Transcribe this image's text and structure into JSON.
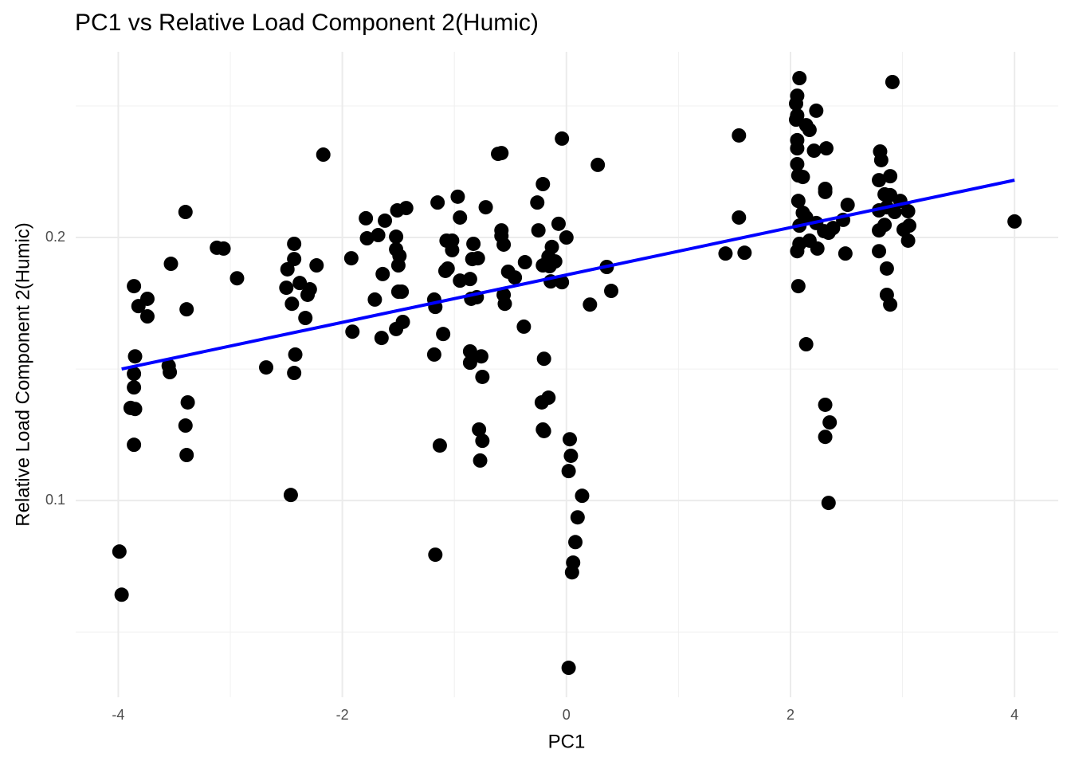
{
  "chart_data": {
    "type": "scatter",
    "title": "PC1 vs Relative Load Component 2(Humic)",
    "xlabel": "PC1",
    "ylabel": "Relative Load Component 2(Humic)",
    "xlim": [
      -4.38,
      4.39
    ],
    "ylim": [
      0.0252,
      0.2706
    ],
    "xticks": [
      -4,
      -2,
      0,
      2,
      4
    ],
    "yticks": [
      0.1,
      0.2
    ],
    "xminor": [
      -3,
      -1,
      1,
      3
    ],
    "yminor": [
      0.05,
      0.15,
      0.25
    ],
    "grid": true,
    "color": "#000000",
    "x": [
      -3.99,
      -3.97,
      -3.86,
      -3.82,
      -3.74,
      -3.74,
      -3.85,
      -3.86,
      -3.86,
      -3.89,
      -3.85,
      -3.86,
      -3.55,
      -3.54,
      -3.53,
      -3.4,
      -3.39,
      -3.38,
      -3.4,
      -3.39,
      -3.12,
      -3.06,
      -2.94,
      -2.68,
      -2.46,
      -2.43,
      -2.43,
      -2.49,
      -2.5,
      -2.45,
      -2.38,
      -2.29,
      -2.31,
      -2.33,
      -2.42,
      -2.43,
      -2.23,
      -2.17,
      -1.92,
      -1.91,
      -1.79,
      -1.78,
      -1.68,
      -1.71,
      -1.65,
      -1.64,
      -1.62,
      -1.52,
      -1.51,
      -1.43,
      -1.52,
      -1.49,
      -1.5,
      -1.5,
      -1.47,
      -1.46,
      -1.52,
      -1.15,
      -1.18,
      -1.17,
      -1.1,
      -1.18,
      -1.13,
      -1.17,
      -0.97,
      -0.95,
      -1.07,
      -1.02,
      -1.02,
      -1.08,
      -1.06,
      -0.95,
      -0.86,
      -0.83,
      -0.79,
      -0.84,
      -0.85,
      -0.8,
      -0.86,
      -0.86,
      -0.76,
      -0.75,
      -0.78,
      -0.75,
      -0.77,
      -0.72,
      -0.61,
      -0.58,
      -0.58,
      -0.58,
      -0.56,
      -0.56,
      -0.55,
      -0.52,
      -0.46,
      -0.37,
      -0.38,
      -0.26,
      -0.21,
      -0.25,
      -0.21,
      -0.16,
      -0.15,
      -0.13,
      -0.1,
      -0.14,
      -0.07,
      -0.04,
      0.0,
      -0.04,
      -0.2,
      -0.22,
      -0.16,
      -0.21,
      -0.2,
      0.03,
      0.04,
      0.02,
      0.14,
      0.1,
      0.08,
      0.06,
      0.05,
      0.02,
      0.21,
      0.28,
      0.36,
      0.4,
      1.42,
      1.54,
      1.54,
      1.59,
      2.08,
      2.06,
      2.05,
      2.06,
      2.05,
      2.14,
      2.17,
      2.06,
      2.06,
      2.06,
      2.07,
      2.11,
      2.23,
      2.21,
      2.32,
      2.31,
      2.31,
      2.07,
      2.11,
      2.08,
      2.14,
      2.23,
      2.3,
      2.34,
      2.38,
      2.06,
      2.08,
      2.17,
      2.24,
      2.47,
      2.51,
      2.49,
      2.07,
      2.14,
      2.31,
      2.35,
      2.31,
      2.34,
      2.8,
      2.81,
      2.79,
      2.89,
      2.84,
      2.89,
      2.98,
      2.79,
      2.86,
      2.93,
      3.05,
      2.84,
      2.79,
      3.01,
      3.06,
      3.05,
      2.79,
      2.86,
      2.86,
      2.89,
      2.91,
      4.0
    ],
    "values": [
      0.0806,
      0.0642,
      0.1815,
      0.1739,
      0.1767,
      0.17,
      0.1548,
      0.1482,
      0.143,
      0.1352,
      0.1348,
      0.1212,
      0.1512,
      0.1488,
      0.19,
      0.2097,
      0.1727,
      0.1373,
      0.1285,
      0.1173,
      0.1961,
      0.1958,
      0.1845,
      0.1506,
      0.1021,
      0.1976,
      0.1918,
      0.1879,
      0.1809,
      0.1748,
      0.1827,
      0.1803,
      0.1782,
      0.1694,
      0.1555,
      0.1485,
      0.1894,
      0.2315,
      0.1921,
      0.1642,
      0.2073,
      0.1997,
      0.2009,
      0.1764,
      0.1618,
      0.1861,
      0.2064,
      0.2003,
      0.2103,
      0.2112,
      0.1955,
      0.193,
      0.1894,
      0.1794,
      0.1794,
      0.1679,
      0.1652,
      0.2133,
      0.1764,
      0.1736,
      0.1633,
      0.1555,
      0.1209,
      0.0794,
      0.2155,
      0.2076,
      0.1988,
      0.1988,
      0.1952,
      0.1873,
      0.1882,
      0.1836,
      0.1842,
      0.1976,
      0.1921,
      0.1918,
      0.1767,
      0.1773,
      0.1567,
      0.1524,
      0.1548,
      0.147,
      0.127,
      0.1227,
      0.1152,
      0.2115,
      0.2318,
      0.2321,
      0.2027,
      0.2006,
      0.1973,
      0.1782,
      0.1748,
      0.187,
      0.1848,
      0.1906,
      0.1661,
      0.2133,
      0.2203,
      0.2027,
      0.1894,
      0.1927,
      0.1891,
      0.1964,
      0.1909,
      0.1833,
      0.2052,
      0.183,
      0.2,
      0.2376,
      0.1539,
      0.1373,
      0.1391,
      0.127,
      0.1264,
      0.1233,
      0.117,
      0.1112,
      0.1018,
      0.0936,
      0.0842,
      0.0764,
      0.0727,
      0.0364,
      0.1745,
      0.2276,
      0.1888,
      0.1797,
      0.1939,
      0.2388,
      0.2076,
      0.1942,
      0.2606,
      0.2539,
      0.2509,
      0.2464,
      0.2448,
      0.2427,
      0.2409,
      0.237,
      0.2339,
      0.2279,
      0.2236,
      0.223,
      0.2482,
      0.233,
      0.2339,
      0.2185,
      0.2173,
      0.2139,
      0.2094,
      0.2045,
      0.2076,
      0.2055,
      0.2024,
      0.2018,
      0.2036,
      0.1948,
      0.1976,
      0.1988,
      0.1958,
      0.2067,
      0.2124,
      0.1939,
      0.1815,
      0.1594,
      0.1364,
      0.1297,
      0.1242,
      0.0991,
      0.2327,
      0.2294,
      0.2218,
      0.2233,
      0.2164,
      0.2161,
      0.2139,
      0.2103,
      0.2115,
      0.2097,
      0.21,
      0.2048,
      0.2027,
      0.203,
      0.2045,
      0.1988,
      0.1948,
      0.1882,
      0.1782,
      0.1745,
      0.2591,
      0.2061
    ],
    "trend_line": {
      "x": [
        -3.97,
        4.0
      ],
      "values": [
        0.15,
        0.2218
      ],
      "color": "#0000ff"
    }
  }
}
